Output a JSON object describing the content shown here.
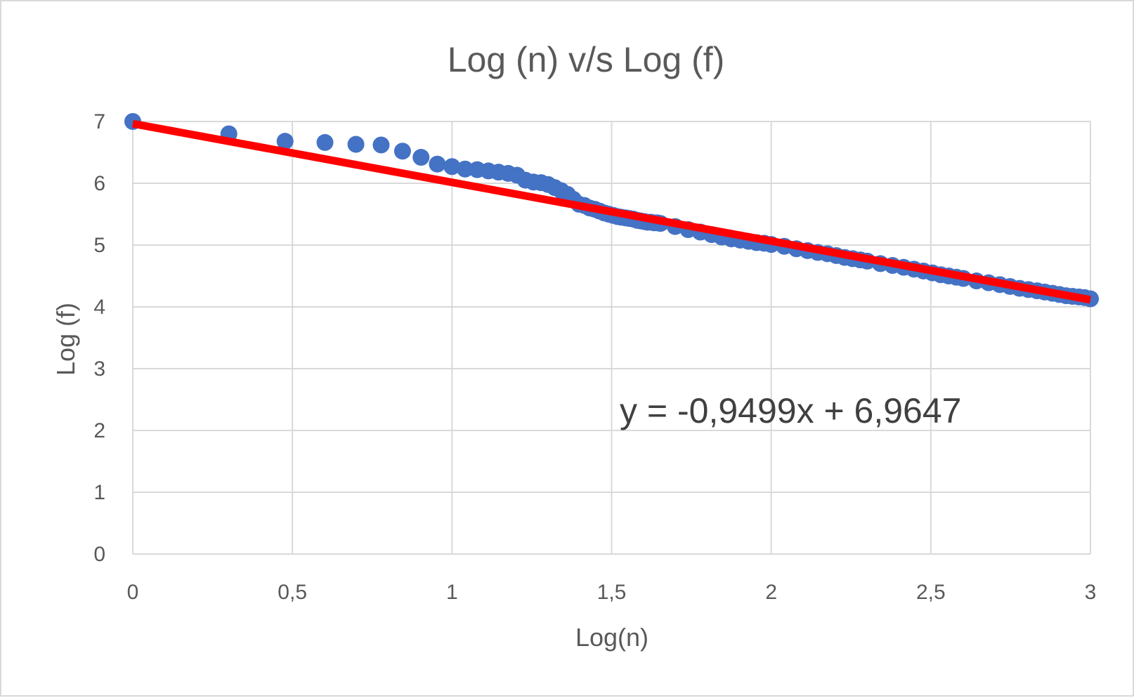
{
  "chart_data": {
    "type": "scatter",
    "title": "Log (n) v/s Log (f)",
    "xlabel": "Log(n)",
    "ylabel": "Log (f)",
    "xlim": [
      0,
      3
    ],
    "ylim": [
      0,
      7
    ],
    "x_ticks": [
      "0",
      "0,5",
      "1",
      "1,5",
      "2",
      "2,5",
      "3"
    ],
    "y_ticks": [
      "0",
      "1",
      "2",
      "3",
      "4",
      "5",
      "6",
      "7"
    ],
    "grid": true,
    "legend": "none",
    "marker_color": "#4472c4",
    "trendline_color": "#ff0000",
    "trendline": {
      "slope": -0.9499,
      "intercept": 6.9647,
      "x_range": [
        0,
        3
      ],
      "label": "y = -0,9499x + 6,9647"
    },
    "points": [
      [
        0,
        7.0
      ],
      [
        0.301,
        6.8
      ],
      [
        0.477,
        6.68
      ],
      [
        0.602,
        6.66
      ],
      [
        0.699,
        6.63
      ],
      [
        0.778,
        6.62
      ],
      [
        0.845,
        6.52
      ],
      [
        0.903,
        6.42
      ],
      [
        0.954,
        6.31
      ],
      [
        1.0,
        6.27
      ],
      [
        1.041,
        6.23
      ],
      [
        1.079,
        6.22
      ],
      [
        1.114,
        6.2
      ],
      [
        1.146,
        6.18
      ],
      [
        1.176,
        6.16
      ],
      [
        1.204,
        6.13
      ],
      [
        1.23,
        6.05
      ],
      [
        1.255,
        6.02
      ],
      [
        1.279,
        6.01
      ],
      [
        1.301,
        5.98
      ],
      [
        1.322,
        5.93
      ],
      [
        1.342,
        5.88
      ],
      [
        1.362,
        5.82
      ],
      [
        1.38,
        5.74
      ],
      [
        1.398,
        5.66
      ],
      [
        1.415,
        5.64
      ],
      [
        1.431,
        5.6
      ],
      [
        1.447,
        5.58
      ],
      [
        1.462,
        5.55
      ],
      [
        1.477,
        5.52
      ],
      [
        1.491,
        5.5
      ],
      [
        1.505,
        5.48
      ],
      [
        1.519,
        5.46
      ],
      [
        1.531,
        5.45
      ],
      [
        1.544,
        5.44
      ],
      [
        1.556,
        5.43
      ],
      [
        1.568,
        5.42
      ],
      [
        1.58,
        5.4
      ],
      [
        1.591,
        5.39
      ],
      [
        1.602,
        5.38
      ],
      [
        1.612,
        5.37
      ],
      [
        1.623,
        5.37
      ],
      [
        1.633,
        5.36
      ],
      [
        1.643,
        5.36
      ],
      [
        1.653,
        5.35
      ],
      [
        1.699,
        5.3
      ],
      [
        1.74,
        5.25
      ],
      [
        1.778,
        5.21
      ],
      [
        1.813,
        5.17
      ],
      [
        1.845,
        5.13
      ],
      [
        1.875,
        5.1
      ],
      [
        1.903,
        5.08
      ],
      [
        1.929,
        5.06
      ],
      [
        1.954,
        5.04
      ],
      [
        1.978,
        5.03
      ],
      [
        2.0,
        5.01
      ],
      [
        2.041,
        4.98
      ],
      [
        2.079,
        4.94
      ],
      [
        2.114,
        4.91
      ],
      [
        2.146,
        4.88
      ],
      [
        2.176,
        4.86
      ],
      [
        2.204,
        4.83
      ],
      [
        2.23,
        4.8
      ],
      [
        2.255,
        4.78
      ],
      [
        2.279,
        4.76
      ],
      [
        2.301,
        4.74
      ],
      [
        2.342,
        4.7
      ],
      [
        2.38,
        4.67
      ],
      [
        2.415,
        4.64
      ],
      [
        2.447,
        4.61
      ],
      [
        2.477,
        4.58
      ],
      [
        2.505,
        4.55
      ],
      [
        2.531,
        4.52
      ],
      [
        2.556,
        4.5
      ],
      [
        2.58,
        4.48
      ],
      [
        2.602,
        4.46
      ],
      [
        2.643,
        4.42
      ],
      [
        2.681,
        4.39
      ],
      [
        2.716,
        4.36
      ],
      [
        2.748,
        4.33
      ],
      [
        2.778,
        4.3
      ],
      [
        2.806,
        4.28
      ],
      [
        2.833,
        4.26
      ],
      [
        2.857,
        4.24
      ],
      [
        2.881,
        4.22
      ],
      [
        2.903,
        4.2
      ],
      [
        2.924,
        4.18
      ],
      [
        2.944,
        4.17
      ],
      [
        2.964,
        4.16
      ],
      [
        2.982,
        4.15
      ],
      [
        3.0,
        4.13
      ]
    ]
  }
}
